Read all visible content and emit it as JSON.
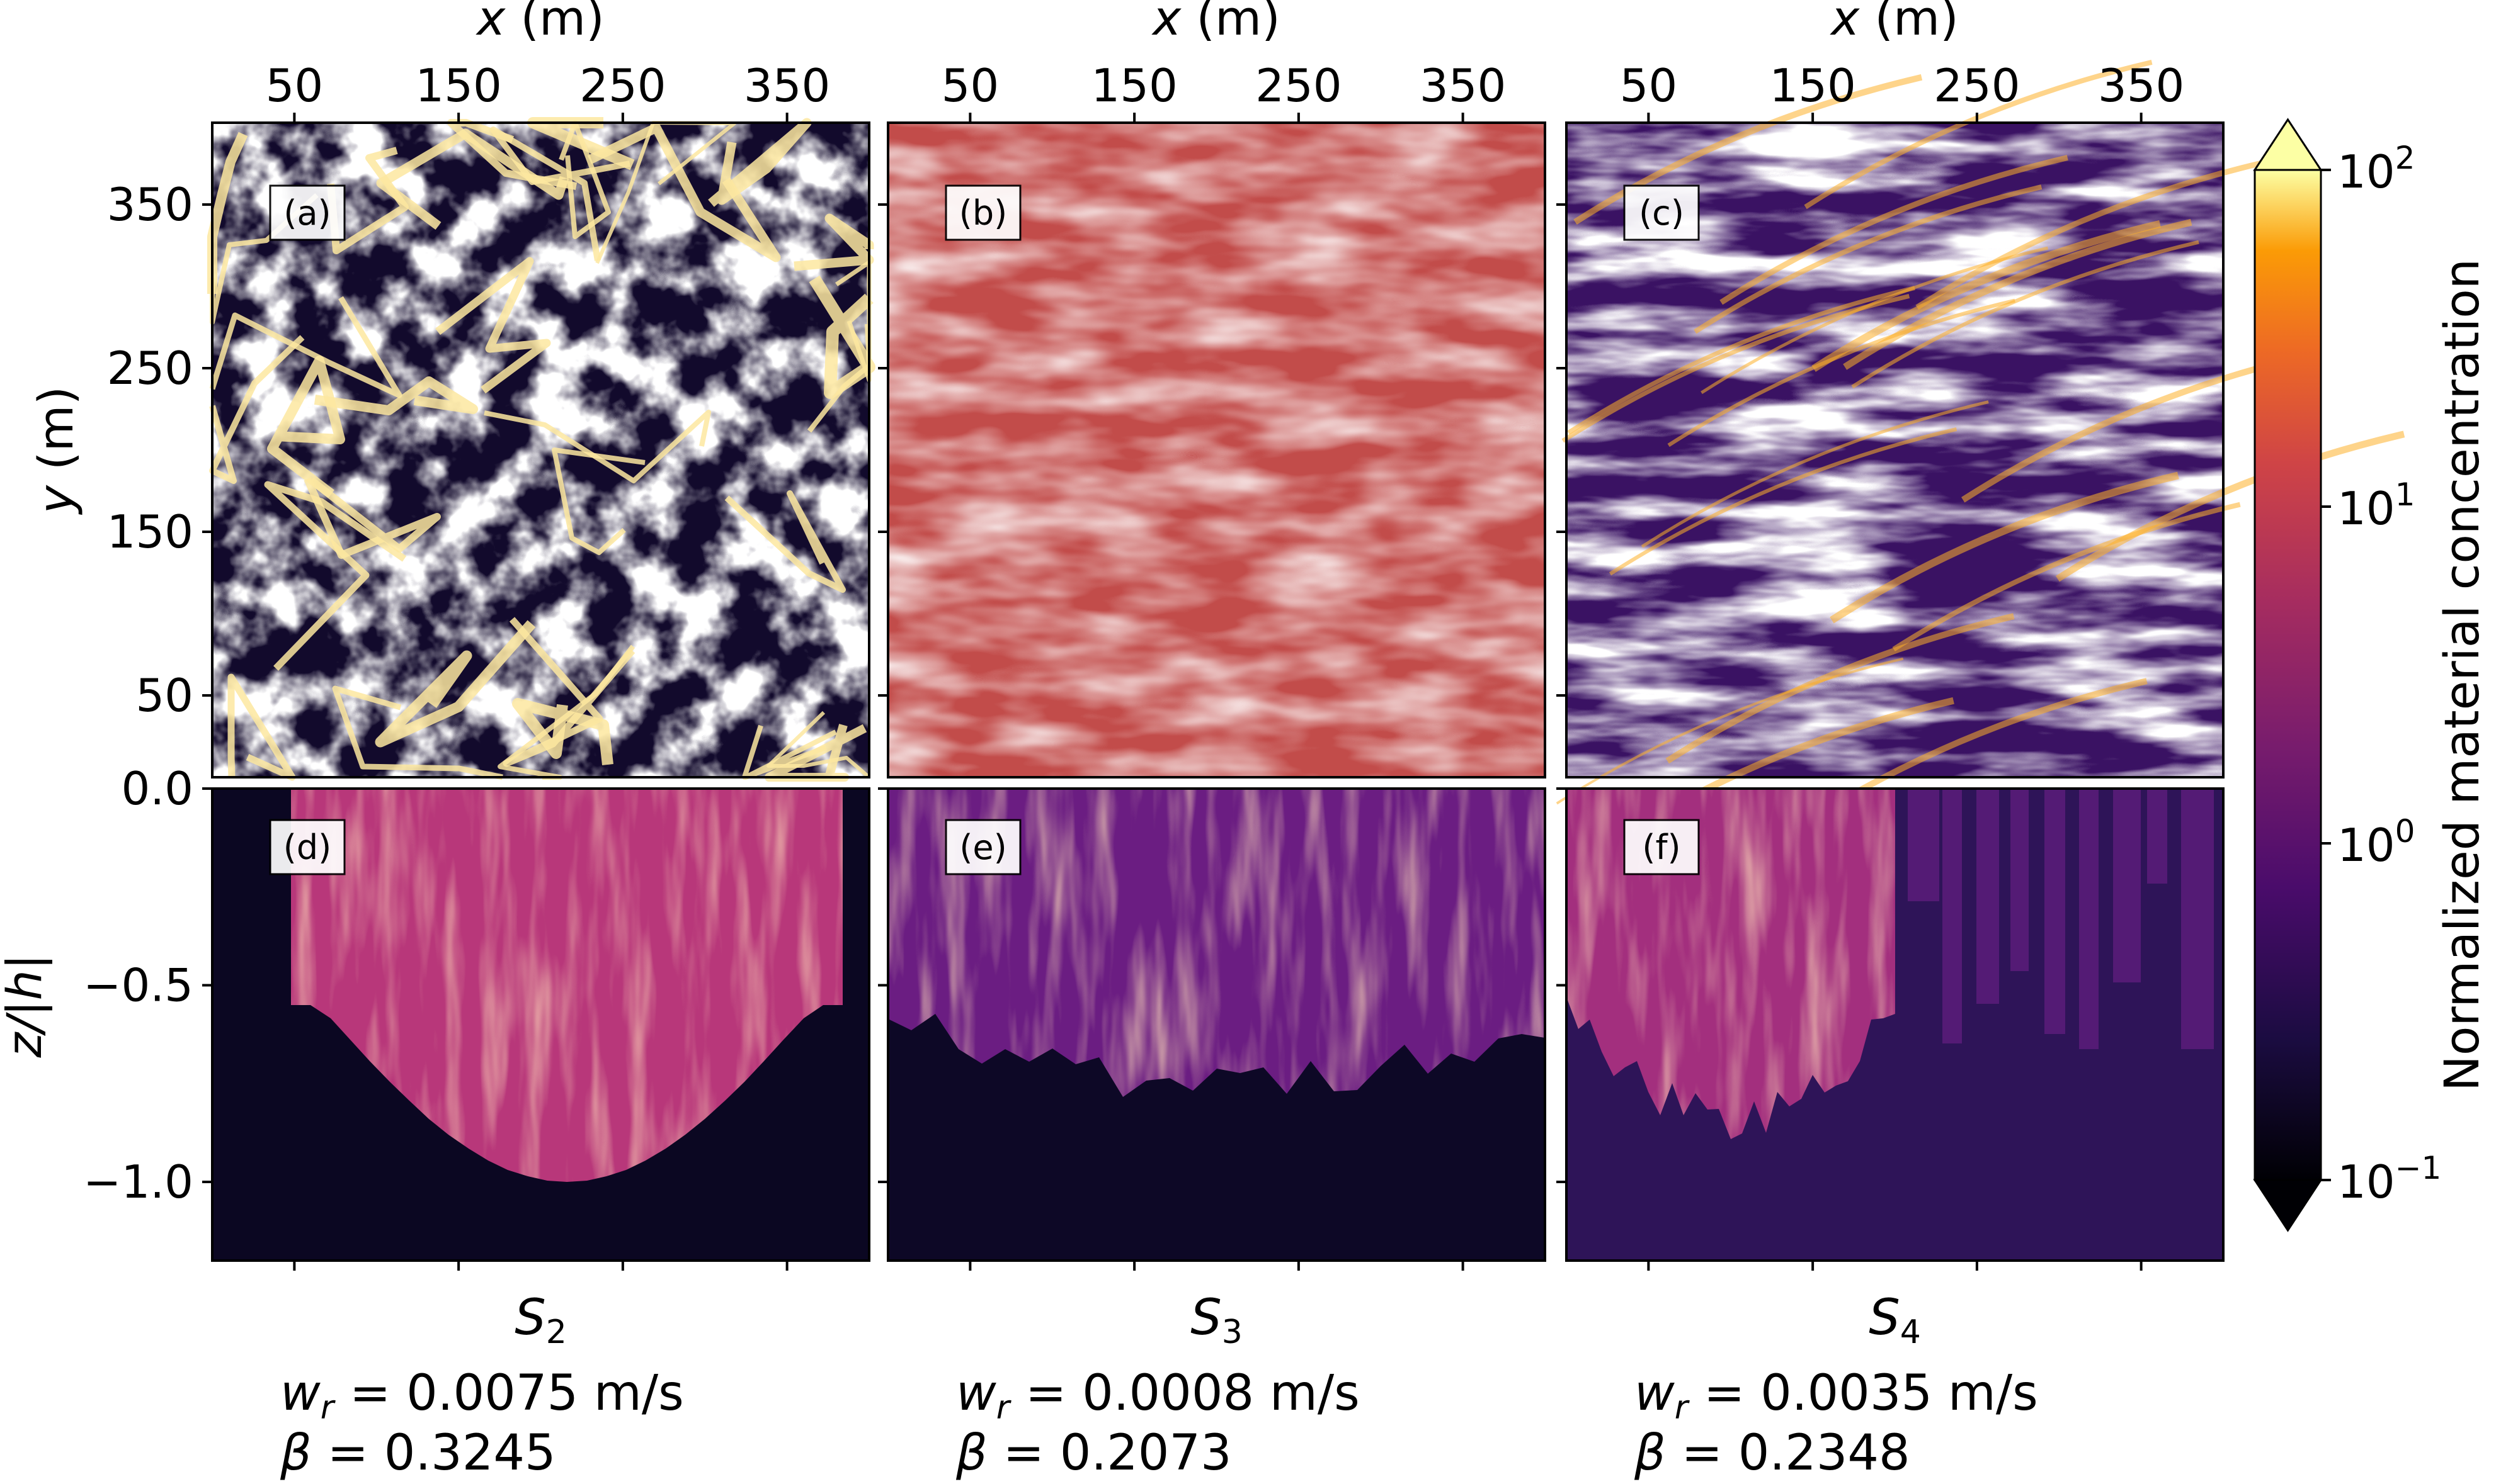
{
  "chart_data": {
    "type": "heatmap",
    "colormap": "inferno",
    "colorbar": {
      "label": "Normalized material concentration",
      "scale": "log",
      "range": [
        0.1,
        100
      ],
      "tick_values": [
        100,
        10,
        1,
        0.1
      ],
      "tick_labels": [
        {
          "base": "10",
          "exp": "2"
        },
        {
          "base": "10",
          "exp": "1"
        },
        {
          "base": "10",
          "exp": "0"
        },
        {
          "base": "10",
          "exp": "−1"
        }
      ],
      "extend": "both"
    },
    "top_row": {
      "x_label": "x",
      "x_unit": " (m)",
      "y_label": "y",
      "y_unit": " (m)",
      "x_range": [
        0,
        400
      ],
      "y_range": [
        0,
        400
      ],
      "x_ticks": [
        50,
        150,
        250,
        350
      ],
      "y_ticks": [
        50,
        150,
        250,
        350
      ],
      "x_tick_labels": [
        "50",
        "150",
        "250",
        "350"
      ],
      "y_tick_labels": [
        "50",
        "150",
        "250",
        "350"
      ]
    },
    "bottom_row": {
      "y_label": "z/|h|",
      "y_range": [
        -1.2,
        0
      ],
      "y_ticks": [
        0.0,
        -0.5,
        -1.0
      ],
      "y_tick_labels": [
        "0.0",
        "−0.5",
        "−1.0"
      ]
    },
    "panels": [
      {
        "label": "(a)",
        "view": "horizontal",
        "case": 0,
        "level": 0.62,
        "texture": "network",
        "dark": "#120a2c",
        "light": "#fde08a"
      },
      {
        "label": "(b)",
        "view": "horizontal",
        "case": 1,
        "level": 0.5,
        "texture": "smooth",
        "dark": "#c24c4a",
        "light": "#db6331"
      },
      {
        "label": "(c)",
        "view": "horizontal",
        "case": 2,
        "level": 0.5,
        "texture": "streaks",
        "dark": "#3a1263",
        "light": "#fb9f1c"
      },
      {
        "label": "(d)",
        "view": "vertical",
        "case": 0,
        "plume_depth": -1.0,
        "plume_x": [
          0.12,
          0.96
        ],
        "fill": "#b8377a",
        "background": "#0b0722"
      },
      {
        "label": "(e)",
        "view": "vertical",
        "case": 1,
        "plume_depth": -0.82,
        "plume_x": [
          0.0,
          1.0
        ],
        "fill": "#6b1d82",
        "background": "#0d0826"
      },
      {
        "label": "(f)",
        "view": "vertical",
        "case": 2,
        "plume_depth": -0.92,
        "plume_x": [
          0.0,
          0.5
        ],
        "fill": "#a32f7e",
        "background": "#2e1458"
      }
    ],
    "cases": [
      {
        "name": "S",
        "sub": "2",
        "wr_value": "0.0075",
        "wr_unit": " m/s",
        "beta_value": "0.3245"
      },
      {
        "name": "S",
        "sub": "3",
        "wr_value": "0.0008",
        "wr_unit": " m/s",
        "beta_value": "0.2073"
      },
      {
        "name": "S",
        "sub": "4",
        "wr_value": "0.0035",
        "wr_unit": " m/s",
        "beta_value": "0.2348"
      }
    ]
  }
}
